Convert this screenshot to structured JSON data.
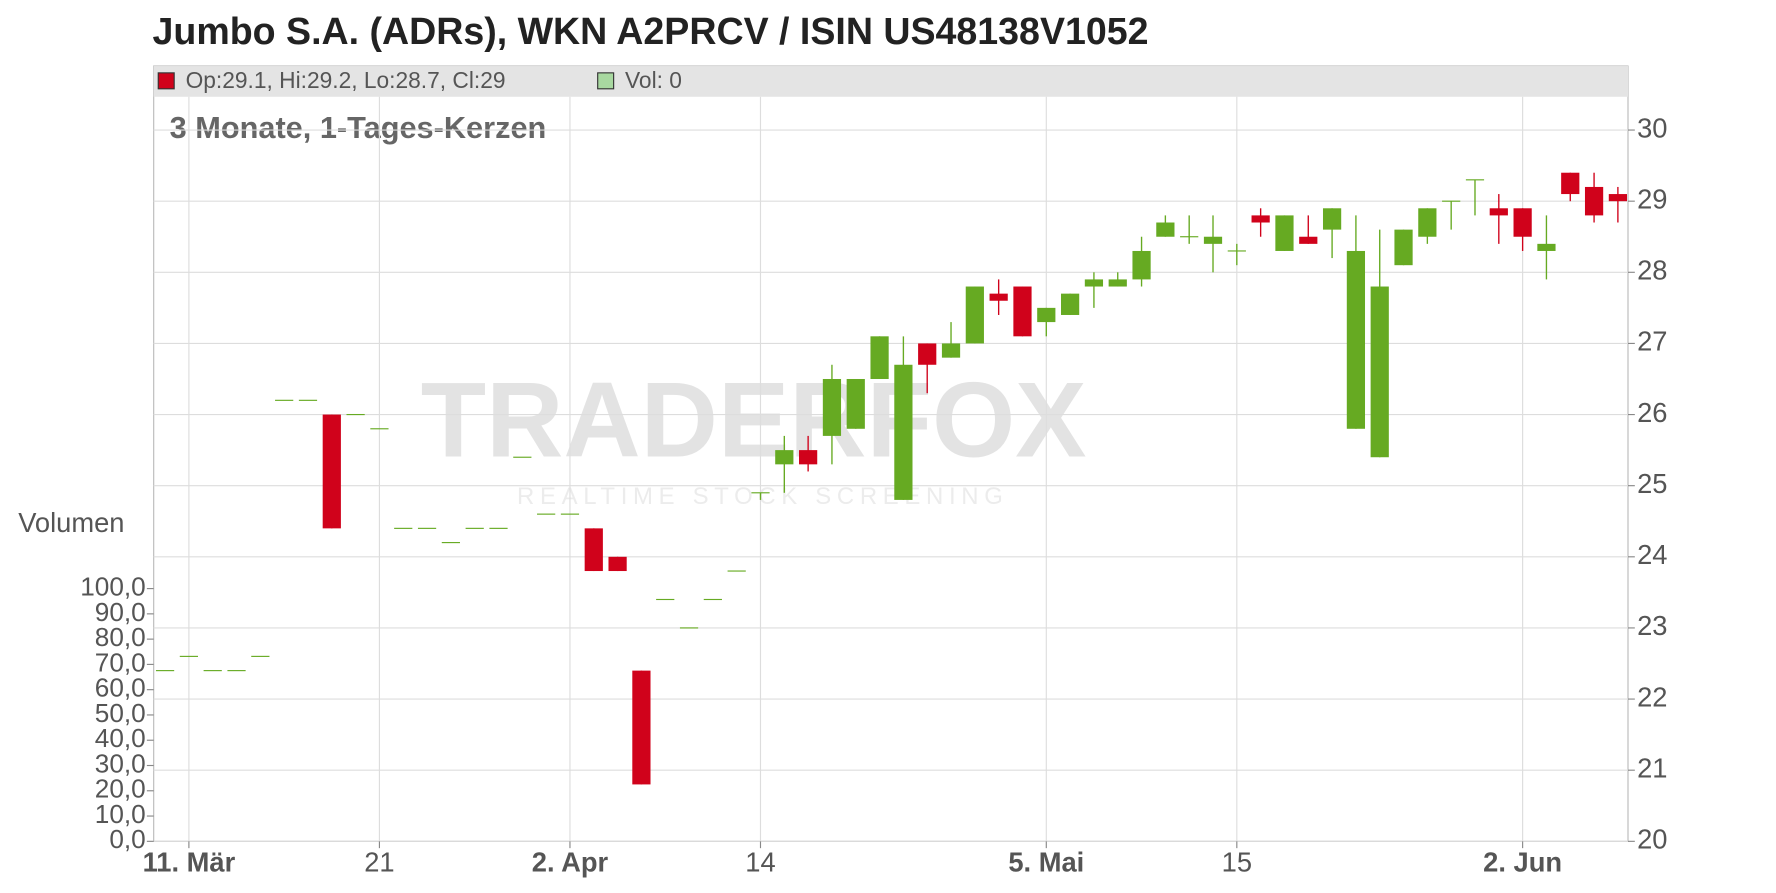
{
  "chart_data": {
    "type": "candlestick",
    "title": "Jumbo S.A. (ADRs), WKN A2PRCV / ISIN US48138V1052",
    "subtitle": "3 Monate, 1-Tages-Kerzen",
    "info": [
      "Op:29.1, Hi:29.2, Lo:28.7, Cl:29",
      "Vol: 0"
    ],
    "info_colors": [
      "#d0021b",
      "#a8d8a0"
    ],
    "watermark": [
      "TRADERFOX",
      "REALTIME STOCK SCREENING"
    ],
    "y2_label": "Volumen",
    "up_color": "#66aa22",
    "down_color": "#d0021b",
    "categories": [
      null,
      "11. Mär",
      null,
      null,
      null,
      null,
      null,
      null,
      null,
      "21",
      null,
      null,
      null,
      null,
      null,
      null,
      null,
      "2. Apr",
      null,
      null,
      null,
      null,
      null,
      null,
      null,
      "14",
      null,
      null,
      null,
      null,
      null,
      null,
      null,
      null,
      null,
      null,
      null,
      "5. Mai",
      null,
      null,
      null,
      null,
      null,
      null,
      null,
      "15",
      null,
      null,
      null,
      null,
      null,
      null,
      null,
      null,
      null,
      null,
      null,
      "2. Jun",
      null,
      null,
      null,
      null
    ],
    "open": [
      22.4,
      22.6,
      22.4,
      22.4,
      22.6,
      26.2,
      26.2,
      26.0,
      26.0,
      25.8,
      24.4,
      24.4,
      24.2,
      24.4,
      24.4,
      25.4,
      24.6,
      24.6,
      24.4,
      24.0,
      22.4,
      23.4,
      23.0,
      23.4,
      23.8,
      24.9,
      25.3,
      25.5,
      25.7,
      25.8,
      26.5,
      24.8,
      27.0,
      26.8,
      27.0,
      27.7,
      27.8,
      27.3,
      27.4,
      27.8,
      27.8,
      27.9,
      28.5,
      28.5,
      28.4,
      28.3,
      28.8,
      28.3,
      28.5,
      28.6,
      25.8,
      25.4,
      28.1,
      28.5,
      29.0,
      29.3,
      28.9,
      28.9,
      28.3,
      29.4,
      29.2,
      29.1
    ],
    "high": [
      22.4,
      22.6,
      22.4,
      22.4,
      22.6,
      26.2,
      26.2,
      26.0,
      26.0,
      25.8,
      24.4,
      24.4,
      24.2,
      24.4,
      24.4,
      25.4,
      24.6,
      24.6,
      24.4,
      24.0,
      22.4,
      23.4,
      23.0,
      23.4,
      23.8,
      24.9,
      25.7,
      25.7,
      26.7,
      26.5,
      27.1,
      27.1,
      27.0,
      27.3,
      27.8,
      27.9,
      27.8,
      27.5,
      27.7,
      28.0,
      28.0,
      28.5,
      28.8,
      28.8,
      28.8,
      28.4,
      28.9,
      28.8,
      28.8,
      28.9,
      28.8,
      28.6,
      28.6,
      28.9,
      29.0,
      29.3,
      29.1,
      28.9,
      28.8,
      29.4,
      29.4,
      29.2
    ],
    "low": [
      22.4,
      22.6,
      22.4,
      22.4,
      22.6,
      26.2,
      26.2,
      24.4,
      26.0,
      25.8,
      24.4,
      24.4,
      24.2,
      24.4,
      24.4,
      25.4,
      24.6,
      24.6,
      23.8,
      23.8,
      20.8,
      23.4,
      23.0,
      23.4,
      23.8,
      24.8,
      24.9,
      25.2,
      25.3,
      25.8,
      26.5,
      24.8,
      26.3,
      26.8,
      27.0,
      27.4,
      27.1,
      27.1,
      27.4,
      27.5,
      27.8,
      27.8,
      28.5,
      28.4,
      28.0,
      28.1,
      28.5,
      28.3,
      28.4,
      28.2,
      25.8,
      25.4,
      28.1,
      28.4,
      28.6,
      28.8,
      28.4,
      28.3,
      27.9,
      29.0,
      28.7,
      28.7
    ],
    "close": [
      22.4,
      22.6,
      22.4,
      22.4,
      22.6,
      26.2,
      26.2,
      24.4,
      26.0,
      25.8,
      24.4,
      24.4,
      24.2,
      24.4,
      24.4,
      25.4,
      24.6,
      24.6,
      23.8,
      23.8,
      20.8,
      23.4,
      23.0,
      23.4,
      23.8,
      24.9,
      25.5,
      25.3,
      26.5,
      26.5,
      27.1,
      26.7,
      26.7,
      27.0,
      27.8,
      27.6,
      27.1,
      27.5,
      27.7,
      27.9,
      27.9,
      28.3,
      28.7,
      28.5,
      28.5,
      28.3,
      28.7,
      28.8,
      28.4,
      28.9,
      28.3,
      27.8,
      28.6,
      28.9,
      29.0,
      29.3,
      28.8,
      28.5,
      28.4,
      29.1,
      28.8,
      29.0
    ],
    "ylim": [
      20,
      30.9
    ],
    "yticks": [
      20,
      21,
      22,
      23,
      24,
      25,
      26,
      27,
      28,
      29,
      30
    ],
    "y2lim": [
      0,
      100
    ],
    "y2ticks": [
      {
        "value": 0,
        "label": "0,0"
      },
      {
        "value": 10,
        "label": "10,0"
      },
      {
        "value": 20,
        "label": "20,0"
      },
      {
        "value": 30,
        "label": "30,0"
      },
      {
        "value": 40,
        "label": "40,0"
      },
      {
        "value": 50,
        "label": "50,0"
      },
      {
        "value": 60,
        "label": "60,0"
      },
      {
        "value": 70,
        "label": "70,0"
      },
      {
        "value": 80,
        "label": "80,0"
      },
      {
        "value": 90,
        "label": "90,0"
      },
      {
        "value": 100,
        "label": "100,0"
      }
    ],
    "grid": true
  }
}
